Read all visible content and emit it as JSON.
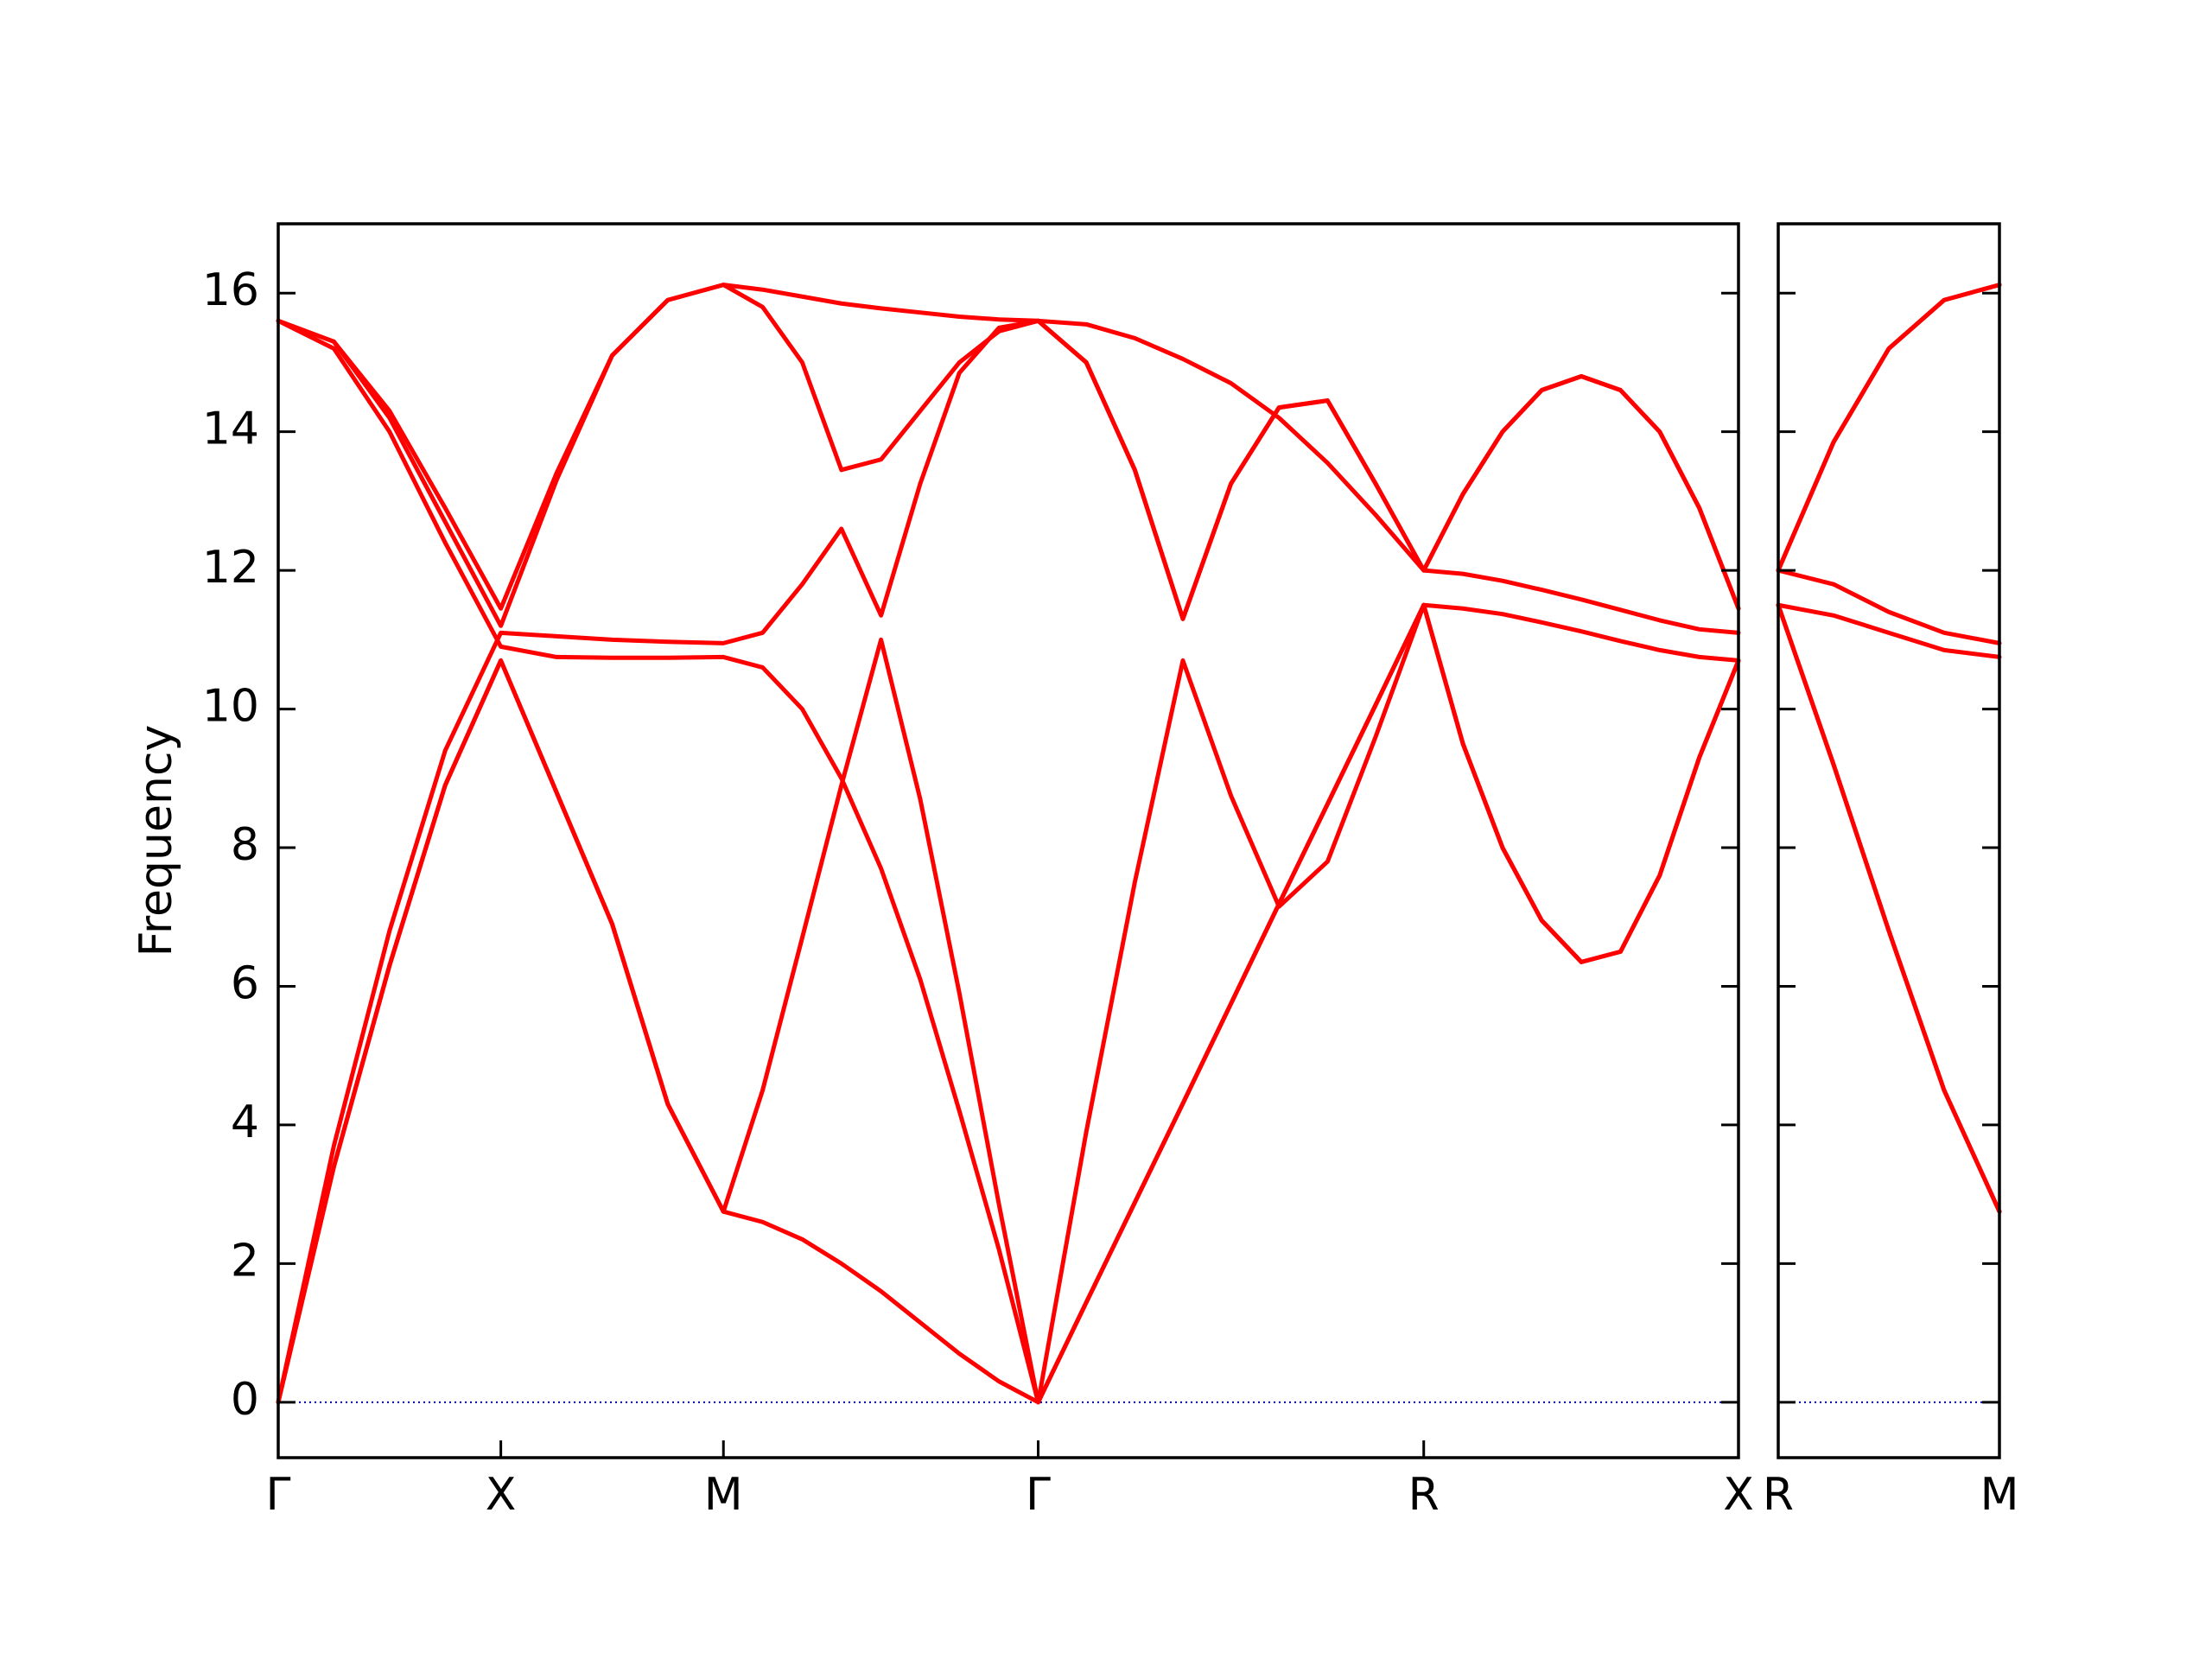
{
  "chart_data": [
    {
      "type": "line",
      "ylabel": "Frequency",
      "x": [
        0,
        0.125,
        0.25,
        0.375,
        0.5,
        0.625,
        0.75,
        0.875,
        1.0,
        1.088,
        1.177,
        1.265,
        1.354,
        1.442,
        1.53,
        1.619,
        1.707,
        1.815,
        1.924,
        2.032,
        2.14,
        2.248,
        2.357,
        2.465,
        2.573,
        2.661,
        2.75,
        2.838,
        2.927,
        3.015,
        3.103,
        3.192,
        3.28
      ],
      "xlim": [
        0,
        3.28
      ],
      "xticks": [
        {
          "value": 0,
          "label": "Γ"
        },
        {
          "value": 0.5,
          "label": "X"
        },
        {
          "value": 1.0,
          "label": "M"
        },
        {
          "value": 1.707,
          "label": "Γ"
        },
        {
          "value": 2.573,
          "label": "R"
        },
        {
          "value": 3.28,
          "label": "X"
        }
      ],
      "ylim": [
        -0.8,
        17
      ],
      "yticks": [
        0,
        2,
        4,
        6,
        8,
        10,
        12,
        14,
        16
      ],
      "hline": 0,
      "hline_color": "#0000aa",
      "series": [
        {
          "color": "#ff0000",
          "values": [
            0,
            3.4,
            6.3,
            8.9,
            10.7,
            8.8,
            6.9,
            4.3,
            2.75,
            2.6,
            2.35,
            2.0,
            1.6,
            1.15,
            0.7,
            0.3,
            0,
            1.44,
            2.88,
            4.31,
            5.75,
            7.19,
            8.63,
            10.06,
            11.5,
            9.5,
            8.0,
            6.95,
            6.35,
            6.5,
            7.6,
            9.3,
            10.7
          ]
        },
        {
          "color": "#ff0000",
          "values": [
            0,
            3.4,
            6.3,
            8.9,
            10.7,
            8.8,
            6.9,
            4.3,
            2.75,
            4.5,
            6.7,
            8.9,
            11.0,
            8.7,
            5.9,
            2.85,
            0,
            1.44,
            2.88,
            4.31,
            5.75,
            7.19,
            8.63,
            10.06,
            11.5,
            9.5,
            8.0,
            6.95,
            6.35,
            6.5,
            7.6,
            9.3,
            10.7
          ]
        },
        {
          "color": "#ff0000",
          "values": [
            0,
            3.7,
            6.8,
            9.4,
            11.1,
            11.05,
            11.0,
            10.97,
            10.95,
            11.1,
            11.8,
            12.6,
            11.35,
            13.25,
            14.85,
            15.5,
            15.6,
            15.0,
            13.45,
            11.3,
            13.25,
            14.35,
            14.45,
            13.25,
            12.0,
            13.1,
            14.0,
            14.6,
            14.8,
            14.6,
            14.0,
            12.9,
            11.45
          ]
        },
        {
          "color": "#ff0000",
          "values": [
            15.6,
            15.2,
            14.0,
            12.4,
            10.9,
            10.75,
            10.74,
            10.74,
            10.75,
            10.6,
            10.0,
            9.0,
            7.7,
            6.1,
            4.2,
            2.2,
            0,
            3.9,
            7.5,
            10.7,
            8.75,
            7.15,
            7.8,
            9.6,
            11.5,
            11.45,
            11.37,
            11.25,
            11.12,
            10.98,
            10.85,
            10.75,
            10.7
          ]
        },
        {
          "color": "#ff0000",
          "values": [
            15.6,
            15.3,
            14.2,
            12.7,
            11.2,
            13.3,
            15.1,
            15.9,
            16.12,
            15.8,
            15.0,
            13.45,
            13.6,
            14.3,
            15.0,
            15.45,
            15.6,
            15.0,
            13.45,
            11.3,
            13.25,
            14.35,
            14.45,
            13.25,
            12.0,
            13.1,
            14.0,
            14.6,
            14.8,
            14.6,
            14.0,
            12.9,
            11.45
          ]
        },
        {
          "color": "#ff0000",
          "values": [
            15.6,
            15.3,
            14.3,
            12.9,
            11.45,
            13.4,
            15.1,
            15.9,
            16.12,
            16.05,
            15.95,
            15.85,
            15.78,
            15.72,
            15.66,
            15.62,
            15.6,
            15.55,
            15.35,
            15.05,
            14.7,
            14.2,
            13.55,
            12.8,
            12.0,
            11.95,
            11.85,
            11.72,
            11.58,
            11.43,
            11.28,
            11.15,
            11.1
          ]
        }
      ]
    },
    {
      "type": "line",
      "x": [
        0,
        0.125,
        0.25,
        0.375,
        0.5
      ],
      "xlim": [
        0,
        0.5
      ],
      "xticks": [
        {
          "value": 0,
          "label": "R"
        },
        {
          "value": 0.5,
          "label": "M"
        }
      ],
      "ylim": [
        -0.8,
        17
      ],
      "yticks": [
        0,
        2,
        4,
        6,
        8,
        10,
        12,
        14,
        16
      ],
      "ytick_labels": false,
      "hline": 0,
      "hline_color": "#0000aa",
      "series": [
        {
          "color": "#ff0000",
          "values": [
            11.5,
            9.2,
            6.8,
            4.5,
            2.75
          ]
        },
        {
          "color": "#ff0000",
          "values": [
            11.5,
            9.2,
            6.8,
            4.5,
            2.75
          ]
        },
        {
          "color": "#ff0000",
          "values": [
            11.5,
            11.35,
            11.1,
            10.85,
            10.75
          ]
        },
        {
          "color": "#ff0000",
          "values": [
            12.0,
            11.8,
            11.4,
            11.1,
            10.95
          ]
        },
        {
          "color": "#ff0000",
          "values": [
            12.0,
            13.85,
            15.2,
            15.9,
            16.12
          ]
        },
        {
          "color": "#ff0000",
          "values": [
            12.0,
            13.85,
            15.2,
            15.9,
            16.12
          ]
        }
      ]
    }
  ]
}
